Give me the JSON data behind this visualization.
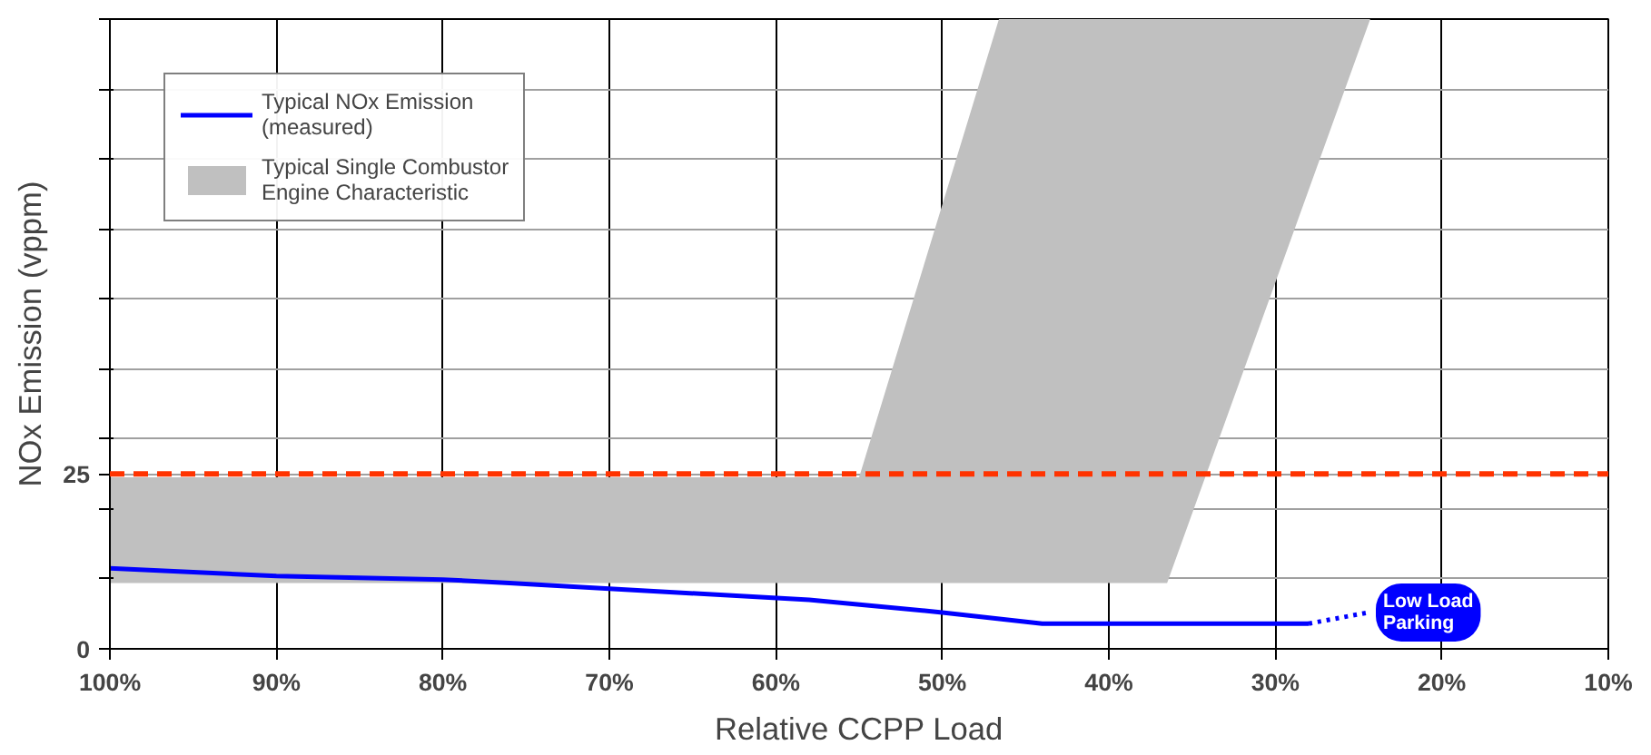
{
  "chart_data": {
    "type": "line",
    "xlabel": "Relative CCPP Load",
    "ylabel": "NOx Emission (vppm)",
    "xlim": [
      100,
      10
    ],
    "ylim": [
      0,
      90
    ],
    "xticks": [
      {
        "value": 100,
        "label": "100%"
      },
      {
        "value": 90,
        "label": "90%"
      },
      {
        "value": 80,
        "label": "80%"
      },
      {
        "value": 70,
        "label": "70%"
      },
      {
        "value": 60,
        "label": "60%"
      },
      {
        "value": 50,
        "label": "50%"
      },
      {
        "value": 40,
        "label": "40%"
      },
      {
        "value": 30,
        "label": "30%"
      },
      {
        "value": 20,
        "label": "20%"
      },
      {
        "value": 10,
        "label": "10%"
      }
    ],
    "yticks": [
      0,
      {
        "value": 10,
        "label": null
      },
      {
        "value": 20,
        "label": null
      },
      25,
      {
        "value": 30,
        "label": null
      },
      {
        "value": 40,
        "label": null
      },
      {
        "value": 50,
        "label": null
      },
      {
        "value": 60,
        "label": null
      },
      {
        "value": 70,
        "label": null
      },
      {
        "value": 80,
        "label": null
      },
      {
        "value": 90,
        "label": null
      }
    ],
    "series": [
      {
        "name": "Typical NOx Emission\n(measured)",
        "color": "#0000ff",
        "x": [
          100,
          90,
          80,
          76,
          70,
          58,
          50,
          44,
          28
        ],
        "values": [
          11.5,
          10.4,
          9.9,
          9.4,
          8.6,
          7,
          5.2,
          3.6,
          3.6
        ]
      },
      {
        "name": "Typical Single Combustor\nEngine Characteristic",
        "color": "#c0c0c0",
        "x": [
          100,
          55,
          46.6,
          36.5,
          24.3
        ],
        "values": [
          null,
          null,
          null,
          null,
          null
        ],
        "lower": [
          9.4,
          9.4,
          9.4,
          9.4,
          90
        ],
        "upper": [
          24.5,
          24.5,
          90,
          90,
          90
        ]
      },
      {
        "color": "#0000ff",
        "line_style": "dotted",
        "x": [
          28,
          24.4
        ],
        "values": [
          3.6,
          5.2
        ]
      }
    ],
    "ref_lines": [
      {
        "axis": "y",
        "value": 25,
        "color": "#ff3300",
        "line_style": "dashed"
      }
    ],
    "annotations": [
      "Low Load\nParking"
    ],
    "grid": true,
    "legend": "top left"
  }
}
